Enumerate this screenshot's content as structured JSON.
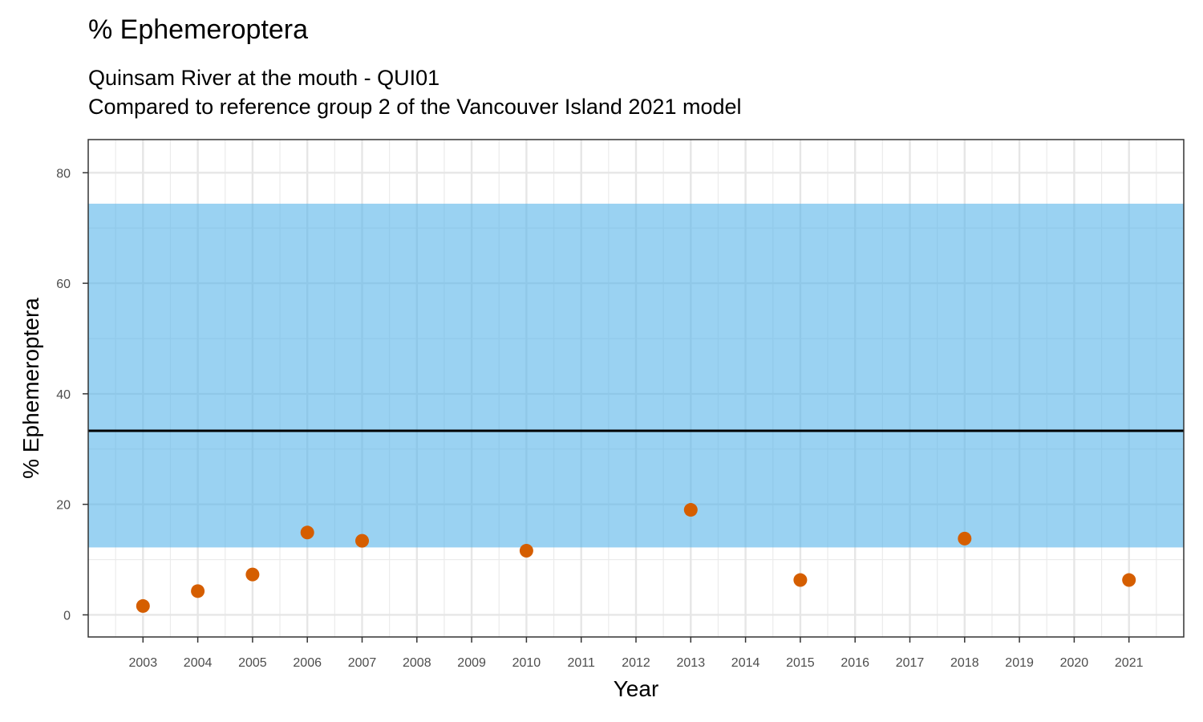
{
  "chart_data": {
    "type": "scatter",
    "title": "% Ephemeroptera",
    "subtitle_lines": [
      "Quinsam River at the mouth - QUI01",
      "Compared to reference group 2 of the Vancouver Island 2021 model"
    ],
    "xlabel": "Year",
    "ylabel": "% Ephemeroptera",
    "xlim": [
      2002,
      2022
    ],
    "ylim": [
      -4,
      86
    ],
    "x_ticks": [
      2003,
      2004,
      2005,
      2006,
      2007,
      2008,
      2009,
      2010,
      2011,
      2012,
      2013,
      2014,
      2015,
      2016,
      2017,
      2018,
      2019,
      2020,
      2021
    ],
    "y_ticks": [
      0,
      20,
      40,
      60,
      80
    ],
    "grid": true,
    "reference_band": {
      "lower": 12.2,
      "upper": 74.4,
      "color": "#56B4E9"
    },
    "reference_line": {
      "value": 33.3,
      "color": "#000000"
    },
    "series": [
      {
        "color": "#D55E00",
        "points": [
          {
            "x": 2003,
            "y": 1.6
          },
          {
            "x": 2004,
            "y": 4.3
          },
          {
            "x": 2005,
            "y": 7.3
          },
          {
            "x": 2006,
            "y": 14.9
          },
          {
            "x": 2007,
            "y": 13.4
          },
          {
            "x": 2010,
            "y": 11.6
          },
          {
            "x": 2013,
            "y": 19.0
          },
          {
            "x": 2015,
            "y": 6.3
          },
          {
            "x": 2018,
            "y": 13.8
          },
          {
            "x": 2021,
            "y": 6.3
          }
        ]
      }
    ]
  }
}
